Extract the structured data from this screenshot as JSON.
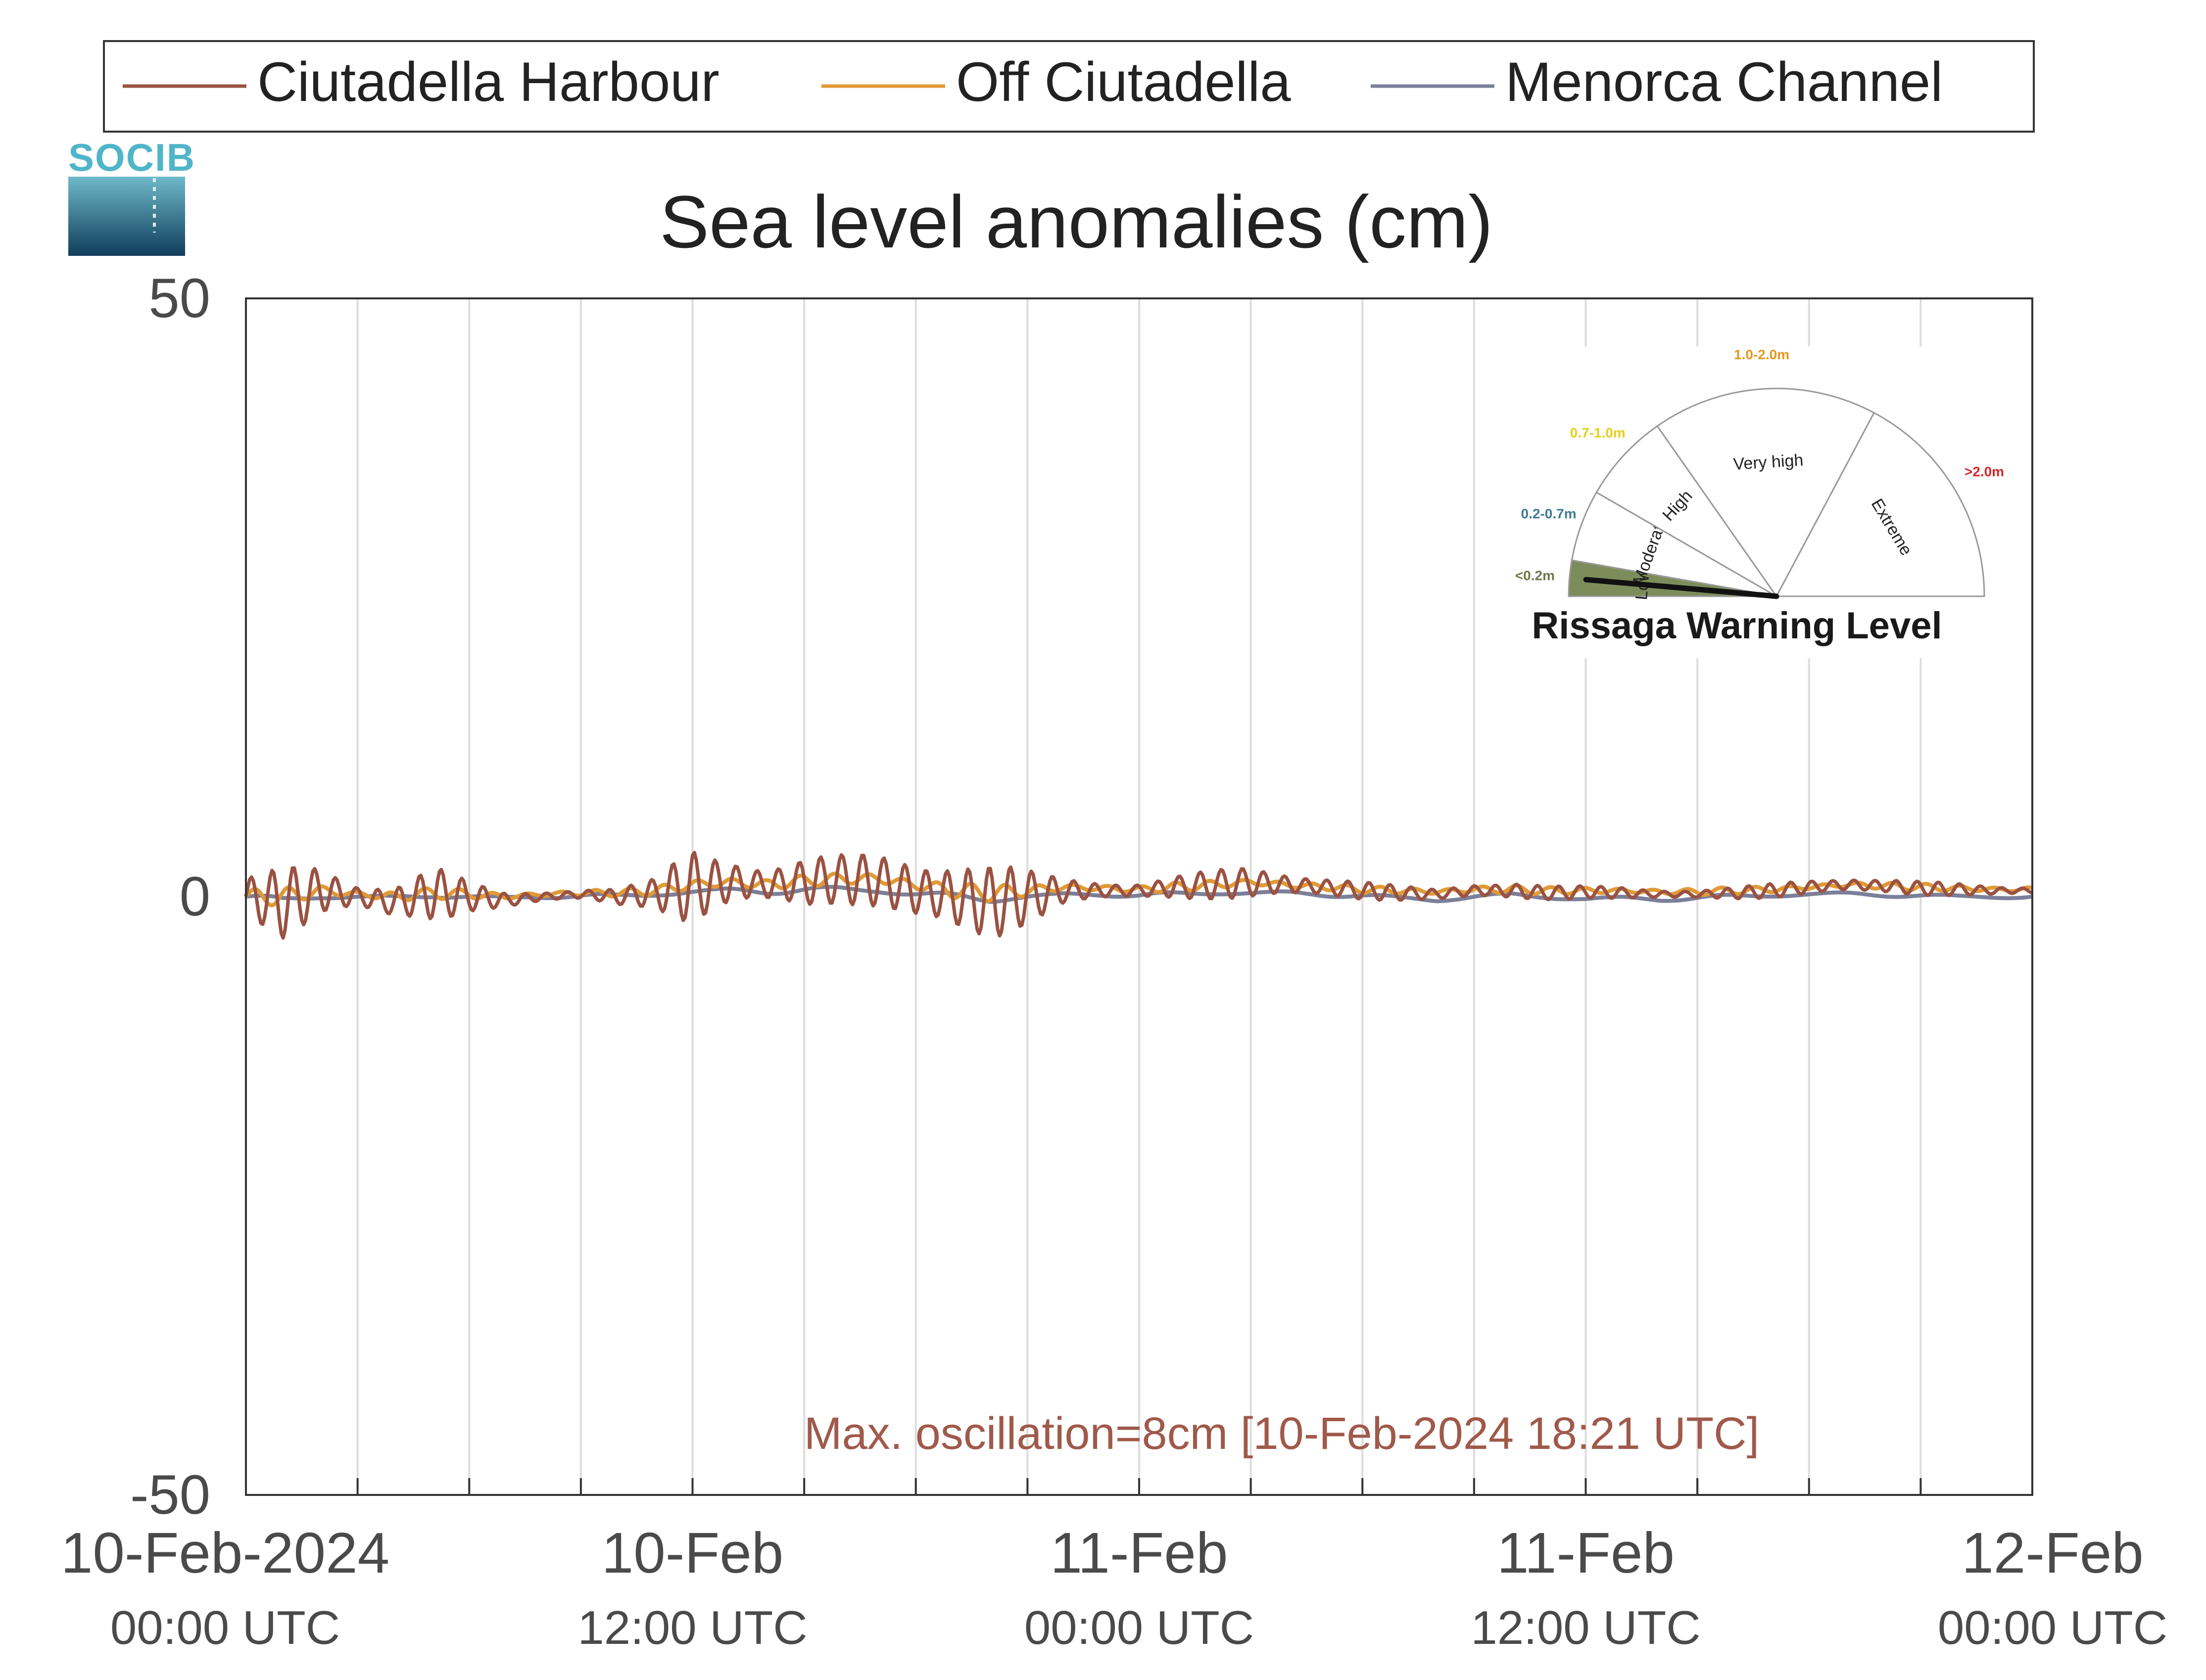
{
  "logo_text": "SOCIB",
  "colors": {
    "harbour": "#9a5242",
    "off": "#e09a36",
    "channel": "#7c7f99",
    "axis_text": "#4a4a4a",
    "annotation": "#a0594a",
    "grid": "#dcdcdc"
  },
  "chart_data": {
    "type": "line",
    "title": "Sea level anomalies (cm)",
    "xlabel": "",
    "ylabel": "",
    "ylim": [
      -50,
      50
    ],
    "yticks": [
      {
        "value": 50,
        "label": "50"
      },
      {
        "value": 0,
        "label": "0"
      },
      {
        "value": -50,
        "label": "-50"
      }
    ],
    "xlim": [
      "2024-02-10T00:00",
      "2024-02-12T00:00"
    ],
    "x_gridlines_hours": [
      3,
      6,
      9,
      12,
      15,
      18,
      21,
      24,
      27,
      30,
      33,
      36,
      39,
      42,
      45
    ],
    "x_tick_labels": [
      {
        "hour": 0,
        "date": "10-Feb-2024",
        "time": "00:00 UTC"
      },
      {
        "hour": 12,
        "date": "10-Feb",
        "time": "12:00 UTC"
      },
      {
        "hour": 24,
        "date": "11-Feb",
        "time": "00:00 UTC"
      },
      {
        "hour": 36,
        "date": "11-Feb",
        "time": "12:00 UTC"
      },
      {
        "hour": 48,
        "date": "12-Feb",
        "time": "00:00 UTC"
      }
    ],
    "grid": "vertical",
    "legend": {
      "placement": "top",
      "orientation": "horizontal"
    },
    "annotation": "Max. oscillation=8cm [10-Feb-2024 18:21 UTC]",
    "series": [
      {
        "name": "Ciutadella Harbour",
        "color": "#9a5242",
        "x": [
          "2024-02-10T00:00",
          "2024-02-10T01:00",
          "2024-02-10T02:00",
          "2024-02-10T03:00",
          "2024-02-10T04:00",
          "2024-02-10T05:00",
          "2024-02-10T06:00",
          "2024-02-10T07:00",
          "2024-02-10T08:00",
          "2024-02-10T09:00",
          "2024-02-10T10:00",
          "2024-02-10T11:00",
          "2024-02-10T12:00",
          "2024-02-10T13:00",
          "2024-02-10T14:00",
          "2024-02-10T15:00",
          "2024-02-10T16:00",
          "2024-02-10T17:00",
          "2024-02-10T18:00",
          "2024-02-10T19:00",
          "2024-02-10T20:00",
          "2024-02-10T21:00",
          "2024-02-10T22:00",
          "2024-02-10T23:00",
          "2024-02-11T00:00",
          "2024-02-11T01:00",
          "2024-02-11T02:00",
          "2024-02-11T03:00",
          "2024-02-11T04:00",
          "2024-02-11T05:00",
          "2024-02-11T06:00",
          "2024-02-11T07:00",
          "2024-02-11T08:00",
          "2024-02-11T09:00",
          "2024-02-11T10:00",
          "2024-02-11T11:00",
          "2024-02-11T12:00",
          "2024-02-11T13:00",
          "2024-02-11T14:00",
          "2024-02-11T15:00",
          "2024-02-11T16:00",
          "2024-02-11T17:00",
          "2024-02-11T18:00",
          "2024-02-11T19:00",
          "2024-02-11T20:00",
          "2024-02-11T21:00",
          "2024-02-11T22:00",
          "2024-02-11T23:00",
          "2024-02-12T00:00"
        ],
        "y": [
          0.0,
          -0.5,
          0.5,
          0.0,
          -0.5,
          0.3,
          0.0,
          -0.3,
          0.0,
          0.2,
          0.0,
          0.3,
          0.8,
          1.2,
          1.0,
          1.2,
          1.5,
          1.3,
          0.5,
          0.0,
          -0.5,
          0.0,
          0.5,
          0.5,
          0.5,
          0.8,
          1.0,
          1.2,
          1.0,
          0.8,
          0.5,
          0.3,
          0.2,
          0.5,
          0.5,
          0.3,
          0.4,
          0.3,
          0.2,
          0.2,
          0.3,
          0.5,
          0.8,
          1.0,
          0.9,
          0.7,
          0.6,
          0.5,
          0.5
        ],
        "amplitude": [
          2.0,
          3.0,
          2.0,
          1.2,
          2.2,
          2.8,
          1.2,
          0.6,
          0.5,
          0.6,
          0.8,
          1.2,
          3.5,
          2.8,
          2.0,
          2.2,
          2.0,
          2.5,
          3.5,
          4.0,
          3.5,
          2.2,
          1.2,
          1.0,
          0.8,
          1.0,
          1.2,
          1.5,
          1.3,
          1.0,
          0.8,
          0.6,
          0.5,
          0.8,
          0.9,
          0.6,
          0.5,
          0.6,
          0.5,
          0.4,
          0.5,
          0.6,
          0.7,
          0.8,
          0.7,
          0.6,
          0.5,
          0.4,
          0.4
        ]
      },
      {
        "name": "Off Ciutadella",
        "color": "#e09a36",
        "x": [
          "2024-02-10T00:00",
          "2024-02-10T01:00",
          "2024-02-10T02:00",
          "2024-02-10T03:00",
          "2024-02-10T04:00",
          "2024-02-10T05:00",
          "2024-02-10T06:00",
          "2024-02-10T07:00",
          "2024-02-10T08:00",
          "2024-02-10T09:00",
          "2024-02-10T10:00",
          "2024-02-10T11:00",
          "2024-02-10T12:00",
          "2024-02-10T13:00",
          "2024-02-10T14:00",
          "2024-02-10T15:00",
          "2024-02-10T16:00",
          "2024-02-10T17:00",
          "2024-02-10T18:00",
          "2024-02-10T19:00",
          "2024-02-10T20:00",
          "2024-02-10T21:00",
          "2024-02-10T22:00",
          "2024-02-10T23:00",
          "2024-02-11T00:00",
          "2024-02-11T01:00",
          "2024-02-11T02:00",
          "2024-02-11T03:00",
          "2024-02-11T04:00",
          "2024-02-11T05:00",
          "2024-02-11T06:00",
          "2024-02-11T07:00",
          "2024-02-11T08:00",
          "2024-02-11T09:00",
          "2024-02-11T10:00",
          "2024-02-11T11:00",
          "2024-02-11T12:00",
          "2024-02-11T13:00",
          "2024-02-11T14:00",
          "2024-02-11T15:00",
          "2024-02-11T16:00",
          "2024-02-11T17:00",
          "2024-02-11T18:00",
          "2024-02-11T19:00",
          "2024-02-11T20:00",
          "2024-02-11T21:00",
          "2024-02-11T22:00",
          "2024-02-11T23:00",
          "2024-02-12T00:00"
        ],
        "y": [
          0.0,
          0.0,
          0.5,
          0.2,
          0.0,
          0.3,
          0.2,
          0.0,
          0.2,
          0.3,
          0.3,
          0.5,
          1.0,
          1.2,
          1.0,
          1.3,
          1.5,
          1.5,
          1.0,
          0.5,
          0.3,
          0.5,
          0.8,
          0.7,
          0.6,
          0.8,
          1.0,
          1.2,
          1.0,
          0.8,
          0.6,
          0.5,
          0.4,
          0.6,
          0.6,
          0.5,
          0.5,
          0.5,
          0.4,
          0.4,
          0.5,
          0.6,
          0.8,
          1.0,
          0.9,
          0.8,
          0.7,
          0.6,
          0.6
        ],
        "amplitude": [
          0.6,
          0.8,
          0.6,
          0.4,
          0.5,
          0.5,
          0.4,
          0.3,
          0.3,
          0.3,
          0.3,
          0.4,
          0.6,
          0.6,
          0.5,
          0.5,
          0.5,
          0.6,
          0.7,
          0.8,
          0.7,
          0.5,
          0.4,
          0.4,
          0.3,
          0.4,
          0.4,
          0.4,
          0.4,
          0.3,
          0.3,
          0.3,
          0.3,
          0.4,
          0.4,
          0.3,
          0.3,
          0.3,
          0.3,
          0.3,
          0.3,
          0.3,
          0.3,
          0.3,
          0.3,
          0.3,
          0.3,
          0.3,
          0.3
        ]
      },
      {
        "name": "Menorca Channel",
        "color": "#7c7f99",
        "x": [
          "2024-02-10T00:00",
          "2024-02-10T01:00",
          "2024-02-10T02:00",
          "2024-02-10T03:00",
          "2024-02-10T04:00",
          "2024-02-10T05:00",
          "2024-02-10T06:00",
          "2024-02-10T07:00",
          "2024-02-10T08:00",
          "2024-02-10T09:00",
          "2024-02-10T10:00",
          "2024-02-10T11:00",
          "2024-02-10T12:00",
          "2024-02-10T13:00",
          "2024-02-10T14:00",
          "2024-02-10T15:00",
          "2024-02-10T16:00",
          "2024-02-10T17:00",
          "2024-02-10T18:00",
          "2024-02-10T19:00",
          "2024-02-10T20:00",
          "2024-02-10T21:00",
          "2024-02-10T22:00",
          "2024-02-10T23:00",
          "2024-02-11T00:00",
          "2024-02-11T01:00",
          "2024-02-11T02:00",
          "2024-02-11T03:00",
          "2024-02-11T04:00",
          "2024-02-11T05:00",
          "2024-02-11T06:00",
          "2024-02-11T07:00",
          "2024-02-11T08:00",
          "2024-02-11T09:00",
          "2024-02-11T10:00",
          "2024-02-11T11:00",
          "2024-02-11T12:00",
          "2024-02-11T13:00",
          "2024-02-11T14:00",
          "2024-02-11T15:00",
          "2024-02-11T16:00",
          "2024-02-11T17:00",
          "2024-02-11T18:00",
          "2024-02-11T19:00",
          "2024-02-11T20:00",
          "2024-02-11T21:00",
          "2024-02-11T22:00",
          "2024-02-11T23:00",
          "2024-02-12T00:00"
        ],
        "y": [
          0.0,
          -0.3,
          0.0,
          0.0,
          -0.2,
          0.2,
          0.0,
          -0.1,
          0.0,
          0.1,
          0.0,
          0.2,
          0.4,
          0.5,
          0.5,
          0.6,
          0.6,
          0.5,
          0.2,
          0.0,
          -0.2,
          0.0,
          0.2,
          0.2,
          0.1,
          0.2,
          0.3,
          0.3,
          0.3,
          0.2,
          0.1,
          -0.1,
          -0.3,
          0.0,
          0.1,
          0.0,
          -0.2,
          -0.1,
          -0.2,
          -0.1,
          0.0,
          0.1,
          0.2,
          0.2,
          0.2,
          0.1,
          0.0,
          0.0,
          0.0
        ],
        "amplitude": [
          0.3,
          0.3,
          0.3,
          0.2,
          0.3,
          0.3,
          0.2,
          0.2,
          0.2,
          0.2,
          0.2,
          0.2,
          0.3,
          0.3,
          0.3,
          0.3,
          0.3,
          0.3,
          0.3,
          0.3,
          0.3,
          0.2,
          0.2,
          0.2,
          0.2,
          0.2,
          0.2,
          0.2,
          0.2,
          0.2,
          0.2,
          0.2,
          0.2,
          0.2,
          0.2,
          0.2,
          0.2,
          0.2,
          0.2,
          0.2,
          0.2,
          0.2,
          0.2,
          0.2,
          0.2,
          0.2,
          0.2,
          0.2,
          0.2
        ]
      }
    ]
  },
  "gauge": {
    "title": "Rissaga Warning Level",
    "current_level": "Low",
    "sectors": [
      {
        "name": "Low",
        "range": "<0.2m",
        "range_color": "#6b7a4a",
        "fill": "#7c8c5a",
        "active": true
      },
      {
        "name": "Moderate",
        "range": "0.2-0.7m",
        "range_color": "#3f7a94",
        "fill": "#ffffff",
        "active": false
      },
      {
        "name": "High",
        "range": "0.7-1.0m",
        "range_color": "#e3d01c",
        "fill": "#ffffff",
        "active": false
      },
      {
        "name": "Very high",
        "range": "1.0-2.0m",
        "range_color": "#e39a22",
        "fill": "#ffffff",
        "active": false
      },
      {
        "name": "Extreme",
        "range": ">2.0m",
        "range_color": "#d8262a",
        "fill": "#ffffff",
        "active": false
      }
    ]
  }
}
